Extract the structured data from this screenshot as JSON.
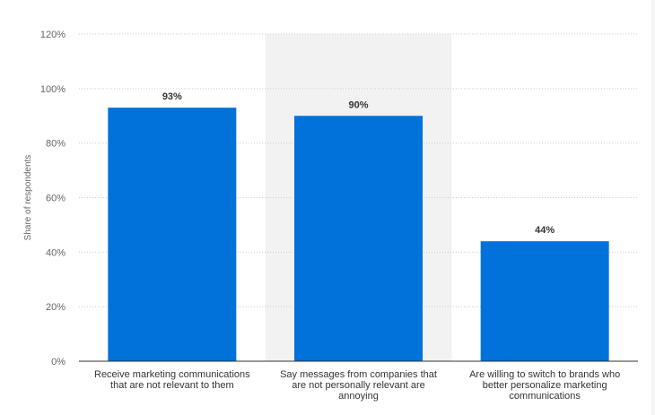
{
  "chart_data": {
    "type": "bar",
    "categories": [
      [
        "Receive marketing communications",
        "that are not relevant to them"
      ],
      [
        "Say messages from companies that",
        "are not personally relevant are",
        "annoying"
      ],
      [
        "Are willing to switch to brands who",
        "better personalize marketing",
        "communications"
      ]
    ],
    "values": [
      93,
      90,
      44
    ],
    "data_labels": [
      "93%",
      "90%",
      "44%"
    ],
    "ylabel": "Share of respondents",
    "ylim": [
      0,
      120
    ],
    "yticks": [
      0,
      20,
      40,
      60,
      80,
      100,
      120
    ],
    "ytick_labels": [
      "0%",
      "20%",
      "40%",
      "60%",
      "80%",
      "100%",
      "120%"
    ],
    "grid": "horizontal dotted",
    "highlighted_category_index": 1,
    "colors": {
      "bar": "#0072d9",
      "grid": "#cccccc",
      "highlight": "#f2f2f2",
      "axis": "#333333"
    }
  }
}
